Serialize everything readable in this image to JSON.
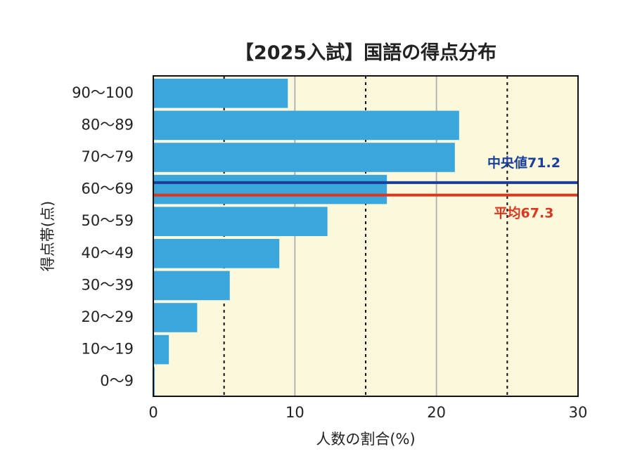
{
  "chart_data": {
    "type": "bar",
    "orientation": "horizontal",
    "title": "【2025入試】国語の得点分布",
    "xlabel": "人数の割合(%)",
    "ylabel": "得点帯(点)",
    "xlim": [
      0,
      30
    ],
    "x_ticks": [
      "0",
      "10",
      "20",
      "30"
    ],
    "categories": [
      "90〜100",
      "80〜89",
      "70〜79",
      "60〜69",
      "50〜59",
      "40〜49",
      "30〜39",
      "20〜29",
      "10〜19",
      "0〜9"
    ],
    "values": [
      9.5,
      21.6,
      21.3,
      16.5,
      12.3,
      8.9,
      5.4,
      3.1,
      1.1,
      0.1
    ],
    "grid": {
      "solid_at": [
        10,
        20
      ],
      "dashed_at": [
        5,
        15,
        25
      ]
    },
    "reference_lines": [
      {
        "label": "中央値71.2",
        "value": 71.2,
        "color": "#1a3f9a"
      },
      {
        "label": "平均67.3",
        "value": 67.3,
        "color": "#d9381e"
      }
    ],
    "colors": {
      "bar": "#3aa6dc",
      "plot_background": "#fbf8dc",
      "frame": "#111111"
    }
  }
}
